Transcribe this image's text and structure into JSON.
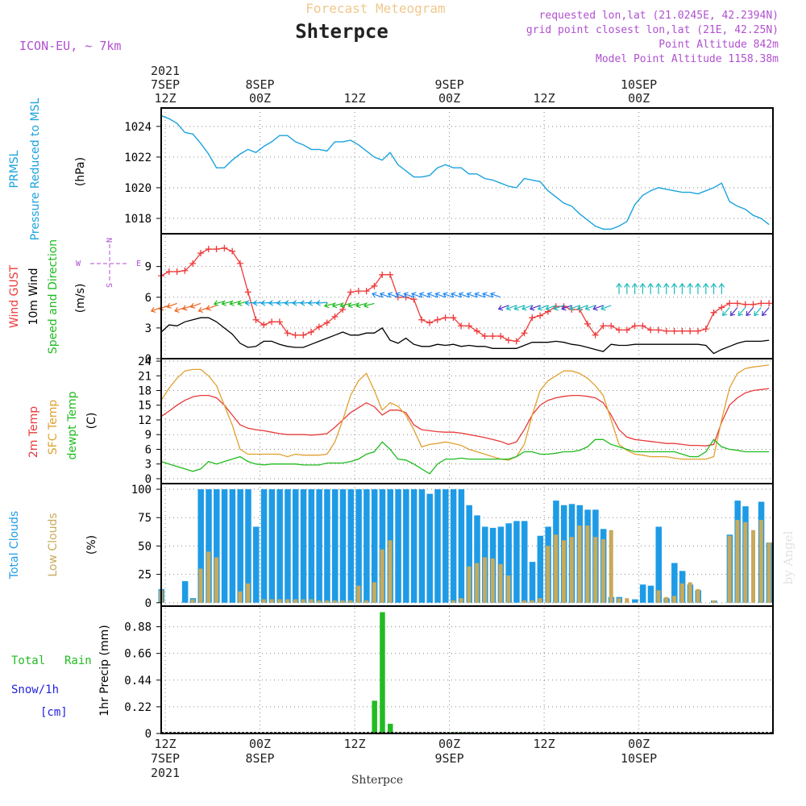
{
  "header": {
    "title": "Forecast Meteogram",
    "location": "Shterpce",
    "model": "ICON-EU, ~ 7km",
    "requested": "requested lon,lat (21.0245E, 42.2394N)",
    "grid_point": "grid point closest lon,lat (21E, 42.25N)",
    "point_altitude": "Point Altitude 842m",
    "model_altitude": "Model Point Altitude 1158.38m",
    "watermark": "by Angel",
    "bottom_label": "Shterpce"
  },
  "time_axis": {
    "top": [
      {
        "l1": "2021",
        "l2": "7SEP",
        "l3": "12Z"
      },
      {
        "l1": "",
        "l2": "8SEP",
        "l3": "00Z"
      },
      {
        "l1": "",
        "l2": "",
        "l3": "12Z"
      },
      {
        "l1": "",
        "l2": "9SEP",
        "l3": "00Z"
      },
      {
        "l1": "",
        "l2": "",
        "l3": "12Z"
      },
      {
        "l1": "",
        "l2": "10SEP",
        "l3": "00Z"
      }
    ],
    "bottom": [
      {
        "l1": "12Z",
        "l2": "7SEP",
        "l3": "2021"
      },
      {
        "l1": "00Z",
        "l2": "8SEP",
        "l3": ""
      },
      {
        "l1": "12Z",
        "l2": "",
        "l3": ""
      },
      {
        "l1": "00Z",
        "l2": "9SEP",
        "l3": ""
      },
      {
        "l1": "12Z",
        "l2": "",
        "l3": ""
      },
      {
        "l1": "00Z",
        "l2": "10SEP",
        "l3": ""
      }
    ]
  },
  "panels": {
    "pressure": {
      "label1": "PRMSL",
      "label2": "Pressure Reduced to MSL",
      "unit": "(hPa)"
    },
    "wind": {
      "label1": "Wind GUST",
      "label2": "10m Wind",
      "label3": "Speed and Direction",
      "unit": "(m/s)",
      "compass": {
        "n": "N",
        "s": "S",
        "w": "W",
        "e": "E"
      }
    },
    "temp": {
      "label1": "2m Temp",
      "label2": "SFC Temp",
      "label3": "dewpt Temp",
      "unit": "(C)"
    },
    "clouds": {
      "label1": "Total Clouds",
      "label2": "Low Clouds",
      "unit": "(%)"
    },
    "precip": {
      "label1": "Total",
      "label1b": "Rain",
      "label2": "Snow/1h",
      "label3": "[cm]",
      "unit": "1hr Precip (mm)"
    }
  },
  "colors": {
    "pressure": "#1aa3dd",
    "gust": "#ee3b3b",
    "wind10m": "#000000",
    "temp2m": "#e8393a",
    "tempsfc": "#e0a030",
    "dewpt": "#1fbb1f",
    "total_clouds": "#1e9be6",
    "low_clouds": "#c8aa5a",
    "rain": "#22bb22",
    "title": "#f0c88c",
    "purple": "#b050d0",
    "snow": "#2222dd"
  },
  "chart_data": [
    {
      "type": "line",
      "name": "pressure",
      "x_hours": [
        0,
        1,
        2,
        3,
        4,
        5,
        6,
        7,
        8,
        9,
        10,
        11,
        12,
        13,
        14,
        15,
        16,
        17,
        18,
        19,
        20,
        21,
        22,
        23,
        24,
        25,
        26,
        27,
        28,
        29,
        30,
        31,
        32,
        33,
        34,
        35,
        36,
        37,
        38,
        39,
        40,
        41,
        42,
        43,
        44,
        45,
        46,
        47,
        48,
        49,
        50,
        51,
        52,
        53,
        54,
        55,
        56,
        57,
        58,
        59,
        60,
        61,
        62,
        63,
        64,
        65,
        66,
        67,
        68,
        69,
        70,
        71,
        72,
        73,
        74,
        75,
        76,
        77
      ],
      "series": [
        {
          "values": [
            1024.7,
            1024.5,
            1024.2,
            1023.6,
            1023.5,
            1022.9,
            1022.2,
            1021.3,
            1021.3,
            1021.8,
            1022.2,
            1022.5,
            1022.3,
            1022.7,
            1023.0,
            1023.4,
            1023.4,
            1023.0,
            1022.8,
            1022.5,
            1022.5,
            1022.4,
            1023.0,
            1023.0,
            1023.1,
            1022.8,
            1022.4,
            1022.0,
            1021.8,
            1022.3,
            1021.5,
            1021.1,
            1020.7,
            1020.7,
            1020.8,
            1021.3,
            1021.5,
            1021.3,
            1021.3,
            1020.9,
            1020.9,
            1020.6,
            1020.5,
            1020.3,
            1020.1,
            1020.0,
            1020.6,
            1020.5,
            1020.4,
            1019.8,
            1019.4,
            1019.0,
            1018.8,
            1018.3,
            1017.9,
            1017.5,
            1017.3,
            1017.3,
            1017.5,
            1017.8,
            1018.9,
            1019.5,
            1019.8,
            1020.0,
            1019.9,
            1019.8,
            1019.7,
            1019.7,
            1019.6,
            1019.8,
            1020.0,
            1020.3,
            1019.1,
            1018.8,
            1018.6,
            1018.2,
            1018.0,
            1017.6
          ]
        }
      ],
      "ylim": [
        1017,
        1025.2
      ],
      "yticks": [
        1018,
        1020,
        1022,
        1024
      ]
    },
    {
      "type": "line",
      "name": "wind",
      "x_hours": [
        0,
        1,
        2,
        3,
        4,
        5,
        6,
        7,
        8,
        9,
        10,
        11,
        12,
        13,
        14,
        15,
        16,
        17,
        18,
        19,
        20,
        21,
        22,
        23,
        24,
        25,
        26,
        27,
        28,
        29,
        30,
        31,
        32,
        33,
        34,
        35,
        36,
        37,
        38,
        39,
        40,
        41,
        42,
        43,
        44,
        45,
        46,
        47,
        48,
        49,
        50,
        51,
        52,
        53,
        54,
        55,
        56,
        57,
        58,
        59,
        60,
        61,
        62,
        63,
        64,
        65,
        66,
        67,
        68,
        69,
        70,
        71,
        72,
        73,
        74,
        75,
        76,
        77
      ],
      "series": [
        {
          "key": "gust",
          "values": [
            8.1,
            8.5,
            8.5,
            8.6,
            9.3,
            10.3,
            10.7,
            10.7,
            10.8,
            10.5,
            9.3,
            6.5,
            3.8,
            3.3,
            3.6,
            3.6,
            2.5,
            2.3,
            2.3,
            2.6,
            3.1,
            3.5,
            4.1,
            4.8,
            6.5,
            6.6,
            6.6,
            7.1,
            8.2,
            8.2,
            6.0,
            6.0,
            5.8,
            3.8,
            3.5,
            3.8,
            4.0,
            4.0,
            3.2,
            3.2,
            2.7,
            2.2,
            2.2,
            2.2,
            1.8,
            1.7,
            2.5,
            4.0,
            4.2,
            4.6,
            5.1,
            5.1,
            4.8,
            4.8,
            3.4,
            2.3,
            3.2,
            3.2,
            2.8,
            2.8,
            3.2,
            3.2,
            2.8,
            2.8,
            2.7,
            2.7,
            2.7,
            2.7,
            2.7,
            2.9,
            4.5,
            5.0,
            5.4,
            5.4,
            5.3,
            5.3,
            5.4,
            5.4
          ]
        },
        {
          "key": "wind10m",
          "values": [
            2.6,
            3.3,
            3.2,
            3.6,
            3.8,
            4.0,
            4.0,
            3.6,
            3.0,
            2.4,
            1.5,
            1.1,
            1.2,
            1.7,
            1.7,
            1.4,
            1.2,
            1.1,
            1.1,
            1.4,
            1.7,
            2.0,
            2.3,
            2.6,
            2.3,
            2.3,
            2.5,
            2.5,
            3.0,
            1.8,
            1.5,
            2.0,
            1.4,
            1.2,
            1.2,
            1.4,
            1.3,
            1.4,
            1.2,
            1.3,
            1.2,
            1.2,
            1.0,
            1.0,
            1.0,
            1.0,
            1.3,
            1.6,
            1.6,
            1.6,
            1.7,
            1.6,
            1.4,
            1.3,
            1.1,
            0.9,
            0.7,
            1.4,
            1.3,
            1.3,
            1.4,
            1.4,
            1.4,
            1.4,
            1.4,
            1.4,
            1.4,
            1.4,
            1.4,
            1.3,
            0.5,
            0.9,
            1.2,
            1.5,
            1.7,
            1.7,
            1.7,
            1.8
          ]
        }
      ],
      "ylim": [
        0,
        12
      ],
      "yticks": [
        0,
        3,
        6,
        9
      ]
    },
    {
      "type": "line",
      "name": "temperature",
      "x_hours": [
        0,
        1,
        2,
        3,
        4,
        5,
        6,
        7,
        8,
        9,
        10,
        11,
        12,
        13,
        14,
        15,
        16,
        17,
        18,
        19,
        20,
        21,
        22,
        23,
        24,
        25,
        26,
        27,
        28,
        29,
        30,
        31,
        32,
        33,
        34,
        35,
        36,
        37,
        38,
        39,
        40,
        41,
        42,
        43,
        44,
        45,
        46,
        47,
        48,
        49,
        50,
        51,
        52,
        53,
        54,
        55,
        56,
        57,
        58,
        59,
        60,
        61,
        62,
        63,
        64,
        65,
        66,
        67,
        68,
        69,
        70,
        71,
        72,
        73,
        74,
        75,
        76,
        77
      ],
      "series": [
        {
          "key": "temp2m",
          "values": [
            12.7,
            13.8,
            15.0,
            16.0,
            16.7,
            17.0,
            17.0,
            16.5,
            15.0,
            13.0,
            11.0,
            10.3,
            10.0,
            9.8,
            9.5,
            9.2,
            9.0,
            9.0,
            9.0,
            8.9,
            9.0,
            9.2,
            10.5,
            12.0,
            13.5,
            14.5,
            15.5,
            14.7,
            13.0,
            14.0,
            14.0,
            13.5,
            11.0,
            10.0,
            9.8,
            9.6,
            9.5,
            9.5,
            9.3,
            9.0,
            8.7,
            8.4,
            8.0,
            7.6,
            7.0,
            7.5,
            10.0,
            13.0,
            15.0,
            16.0,
            16.5,
            16.8,
            17.0,
            17.0,
            16.8,
            16.5,
            15.5,
            13.0,
            10.0,
            8.5,
            8.0,
            7.8,
            7.6,
            7.4,
            7.2,
            7.2,
            7.0,
            6.8,
            6.8,
            6.7,
            7.0,
            11.5,
            15.0,
            16.5,
            17.5,
            18.0,
            18.2,
            18.4
          ]
        },
        {
          "key": "tempsfc",
          "values": [
            16.0,
            18.5,
            20.5,
            22.0,
            22.3,
            22.3,
            21.0,
            19.0,
            15.0,
            11.0,
            6.0,
            5.0,
            5.0,
            5.0,
            5.0,
            5.0,
            4.5,
            5.0,
            4.8,
            4.8,
            4.8,
            5.0,
            7.5,
            12.0,
            17.0,
            20.0,
            21.5,
            18.0,
            14.0,
            15.5,
            14.8,
            13.0,
            10.0,
            6.5,
            7.0,
            7.2,
            7.5,
            7.2,
            6.8,
            6.0,
            5.5,
            5.0,
            4.5,
            4.0,
            3.8,
            4.5,
            7.0,
            13.0,
            18.0,
            20.0,
            21.0,
            22.0,
            22.0,
            21.5,
            20.5,
            19.0,
            17.0,
            12.0,
            7.0,
            5.8,
            5.0,
            4.8,
            4.5,
            4.5,
            4.5,
            4.2,
            4.0,
            4.0,
            4.0,
            4.0,
            4.5,
            12.0,
            18.5,
            21.5,
            22.5,
            22.8,
            23.0,
            23.2
          ]
        },
        {
          "key": "dewpt",
          "values": [
            3.5,
            3.0,
            2.5,
            2.0,
            1.5,
            2.0,
            3.5,
            3.0,
            3.5,
            4.0,
            4.5,
            3.5,
            3.0,
            2.8,
            3.0,
            3.0,
            3.0,
            3.0,
            2.8,
            2.8,
            2.8,
            3.2,
            3.2,
            3.2,
            3.5,
            4.0,
            5.0,
            5.5,
            7.5,
            6.0,
            4.0,
            3.8,
            3.0,
            2.0,
            1.0,
            3.0,
            4.0,
            4.0,
            4.2,
            4.0,
            4.0,
            4.0,
            4.0,
            4.0,
            4.0,
            4.5,
            5.5,
            5.5,
            5.0,
            5.0,
            5.2,
            5.5,
            5.5,
            5.8,
            6.5,
            8.0,
            8.0,
            7.0,
            6.5,
            6.0,
            5.5,
            5.5,
            5.5,
            5.5,
            5.5,
            5.5,
            5.0,
            4.5,
            4.5,
            5.5,
            8.0,
            6.5,
            6.0,
            5.8,
            5.5,
            5.5,
            5.5,
            5.5
          ]
        }
      ],
      "ylim": [
        0,
        24
      ],
      "yticks": [
        0,
        3,
        6,
        9,
        12,
        15,
        18,
        21,
        24
      ]
    },
    {
      "type": "bar",
      "name": "clouds",
      "x_hours": [
        0,
        1,
        2,
        3,
        4,
        5,
        6,
        7,
        8,
        9,
        10,
        11,
        12,
        13,
        14,
        15,
        16,
        17,
        18,
        19,
        20,
        21,
        22,
        23,
        24,
        25,
        26,
        27,
        28,
        29,
        30,
        31,
        32,
        33,
        34,
        35,
        36,
        37,
        38,
        39,
        40,
        41,
        42,
        43,
        44,
        45,
        46,
        47,
        48,
        49,
        50,
        51,
        52,
        53,
        54,
        55,
        56,
        57,
        58,
        59,
        60,
        61,
        62,
        63,
        64,
        65,
        66,
        67,
        68,
        69,
        70,
        71,
        72,
        73,
        74,
        75,
        76,
        77
      ],
      "series": [
        {
          "key": "total_clouds",
          "values": [
            12,
            0,
            0,
            19,
            4,
            100,
            100,
            100,
            100,
            100,
            100,
            100,
            67,
            100,
            100,
            100,
            100,
            100,
            100,
            100,
            100,
            100,
            100,
            100,
            100,
            100,
            100,
            100,
            100,
            100,
            100,
            100,
            100,
            100,
            96,
            100,
            100,
            100,
            100,
            86,
            77,
            67,
            66,
            67,
            70,
            72,
            72,
            36,
            59,
            67,
            90,
            86,
            87,
            86,
            82,
            82,
            65,
            5,
            5,
            0,
            3,
            16,
            15,
            67,
            4,
            35,
            28,
            16,
            11,
            0,
            2,
            0,
            60,
            90,
            85,
            0,
            89,
            53
          ]
        },
        {
          "key": "low_clouds",
          "values": [
            11,
            0,
            0,
            0,
            3,
            30,
            45,
            40,
            0,
            0,
            10,
            17,
            0,
            3,
            3,
            3,
            3,
            3,
            3,
            3,
            2,
            2,
            2,
            2,
            2,
            15,
            2,
            18,
            47,
            55,
            0,
            0,
            0,
            0,
            0,
            0,
            0,
            2,
            4,
            32,
            35,
            40,
            39,
            34,
            24,
            0,
            2,
            2,
            4,
            50,
            60,
            55,
            58,
            68,
            68,
            58,
            56,
            64,
            4,
            4,
            0,
            0,
            0,
            11,
            5,
            6,
            17,
            18,
            12,
            0,
            2,
            0,
            59,
            73,
            71,
            64,
            73,
            53
          ]
        }
      ],
      "ylim": [
        0,
        100
      ],
      "yticks": [
        0,
        25,
        50,
        75,
        100
      ]
    },
    {
      "type": "bar",
      "name": "precip",
      "x_hours": [
        27,
        28,
        29,
        37,
        38,
        39
      ],
      "series": [
        {
          "key": "rain",
          "values": [
            0.27,
            1.0,
            0.08,
            0.01,
            0.01,
            0.01
          ]
        }
      ],
      "ylim": [
        0,
        1.0
      ],
      "yticks": [
        0,
        0.22,
        0.44,
        0.66,
        0.88
      ]
    }
  ]
}
